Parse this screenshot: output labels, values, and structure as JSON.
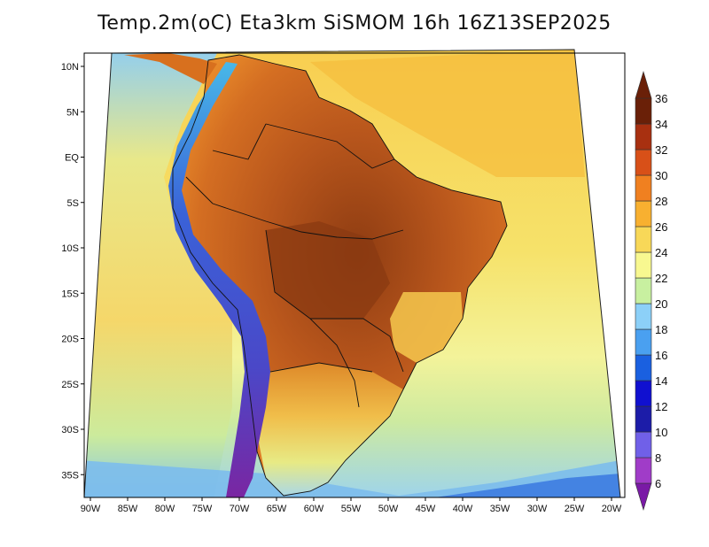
{
  "title": "Temp.2m(oC) Eta3km SiSMOM 16h 16Z13SEP2025",
  "map": {
    "projection": "polar-stereographic sector",
    "lon_range": [
      -90,
      -20
    ],
    "lat_range": [
      -37.5,
      12
    ],
    "lat_ticks": [
      {
        "value": 10,
        "label": "10N"
      },
      {
        "value": 5,
        "label": "5N"
      },
      {
        "value": 0,
        "label": "EQ"
      },
      {
        "value": -5,
        "label": "5S"
      },
      {
        "value": -10,
        "label": "10S"
      },
      {
        "value": -15,
        "label": "15S"
      },
      {
        "value": -20,
        "label": "20S"
      },
      {
        "value": -25,
        "label": "25S"
      },
      {
        "value": -30,
        "label": "30S"
      },
      {
        "value": -35,
        "label": "35S"
      }
    ],
    "lon_ticks": [
      {
        "value": -90,
        "label": "90W"
      },
      {
        "value": -85,
        "label": "85W"
      },
      {
        "value": -80,
        "label": "80W"
      },
      {
        "value": -75,
        "label": "75W"
      },
      {
        "value": -70,
        "label": "70W"
      },
      {
        "value": -65,
        "label": "65W"
      },
      {
        "value": -60,
        "label": "60W"
      },
      {
        "value": -55,
        "label": "55W"
      },
      {
        "value": -50,
        "label": "50W"
      },
      {
        "value": -45,
        "label": "45W"
      },
      {
        "value": -40,
        "label": "40W"
      },
      {
        "value": -35,
        "label": "35W"
      },
      {
        "value": -30,
        "label": "30W"
      },
      {
        "value": -25,
        "label": "25W"
      },
      {
        "value": -20,
        "label": "20W"
      }
    ]
  },
  "colorbar": {
    "unit": "oC",
    "labels": [
      "6",
      "8",
      "10",
      "12",
      "14",
      "16",
      "18",
      "20",
      "22",
      "24",
      "26",
      "28",
      "30",
      "32",
      "34",
      "36"
    ],
    "levels": [
      6,
      8,
      10,
      12,
      14,
      16,
      18,
      20,
      22,
      24,
      26,
      28,
      30,
      32,
      34,
      36
    ],
    "colors": [
      "#7a1aa6",
      "#a03cc8",
      "#7060e8",
      "#1c1ca8",
      "#1010d0",
      "#1a60e0",
      "#4aa0f0",
      "#8cd0f8",
      "#c8f0a0",
      "#f8f890",
      "#f8d858",
      "#f8b030",
      "#f08020",
      "#d85018",
      "#a83010",
      "#6a2008"
    ]
  },
  "colors": {
    "ocean_warm": "#f7cf4c",
    "ocean_mild": "#f4ef80",
    "ocean_cool": "#c8ec9a",
    "ocean_cold": "#8fcdf4",
    "land_hot": "#b4501a",
    "land_very_hot": "#8a3a12",
    "andes_cold": "#3c4cd8",
    "andes_colder": "#7a2aa8",
    "border": "#111111"
  }
}
